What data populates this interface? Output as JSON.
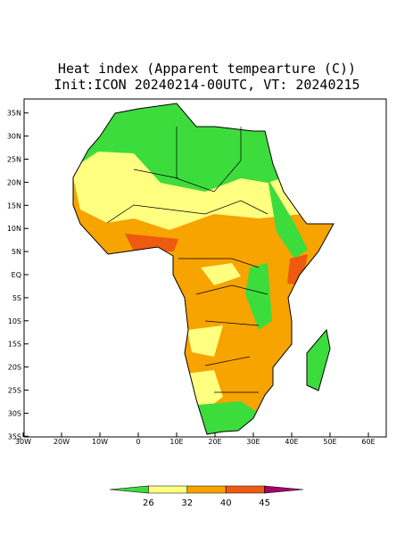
{
  "map": {
    "title_lines": [
      "Heat index (Apparent tempearture (C))",
      "Init:ICON 20240214-00UTC, VT: 20240215"
    ],
    "lon_ticks": [
      {
        "value": -30,
        "label": "30W"
      },
      {
        "value": -20,
        "label": "20W"
      },
      {
        "value": -10,
        "label": "10W"
      },
      0,
      {
        "value": 10,
        "label": "10E"
      },
      {
        "value": 20,
        "label": "20E"
      },
      {
        "value": 30,
        "label": "30E"
      },
      {
        "value": 40,
        "label": "40E"
      },
      {
        "value": 50,
        "label": "50E"
      },
      {
        "value": 60,
        "label": "60E"
      }
    ],
    "lat_ticks": [
      {
        "value": 35,
        "label": "35N"
      },
      {
        "value": 30,
        "label": "30N"
      },
      {
        "value": 25,
        "label": "25N"
      },
      {
        "value": 20,
        "label": "20N"
      },
      {
        "value": 15,
        "label": "15N"
      },
      {
        "value": 10,
        "label": "10N"
      },
      {
        "value": 5,
        "label": "5N"
      },
      {
        "value": 0,
        "label": "EQ"
      },
      {
        "value": -5,
        "label": "5S"
      },
      {
        "value": -10,
        "label": "10S"
      },
      {
        "value": -15,
        "label": "15S"
      },
      {
        "value": -20,
        "label": "20S"
      },
      {
        "value": -25,
        "label": "25S"
      },
      {
        "value": -30,
        "label": "30S"
      },
      {
        "value": -35,
        "label": "35S"
      }
    ],
    "colorbar": {
      "levels": [
        26,
        32,
        40,
        45
      ],
      "colors": [
        "#3ddc3d",
        "#ffff80",
        "#f7a300",
        "#ee5a10",
        "#a8006a"
      ]
    }
  }
}
